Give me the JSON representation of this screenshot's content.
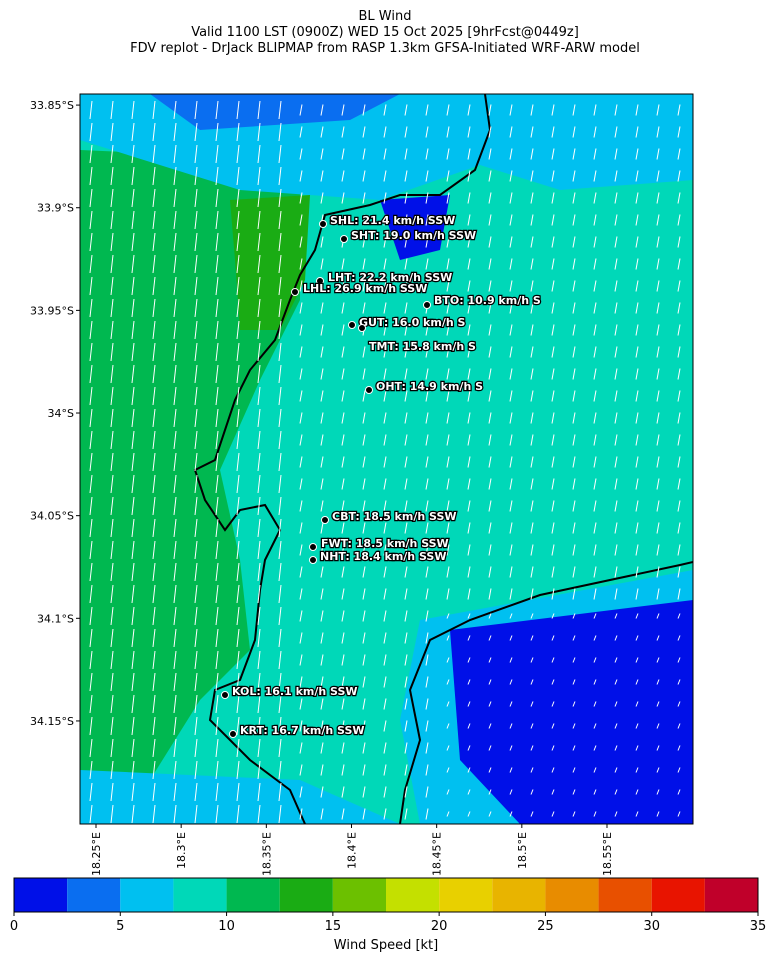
{
  "title": [
    "BL Wind",
    "Valid 1100 LST (0900Z) WED 15 Oct 2025 [9hrFcst@0449z]",
    "FDV replot - DrJack BLIPMAP from RASP 1.3km GFSA-Initiated WRF-ARW model"
  ],
  "map": {
    "latlim": [
      -33.8446,
      -34.2002
    ],
    "lonlim": [
      18.2406,
      18.6005
    ],
    "lat_ticks": [
      {
        "value": -33.85,
        "label": "33.85°S"
      },
      {
        "value": -33.9,
        "label": "33.9°S"
      },
      {
        "value": -33.95,
        "label": "33.95°S"
      },
      {
        "value": -34.0,
        "label": "34°S"
      },
      {
        "value": -34.05,
        "label": "34.05°S"
      },
      {
        "value": -34.1,
        "label": "34.1°S"
      },
      {
        "value": -34.15,
        "label": "34.15°S"
      }
    ],
    "lon_ticks": [
      {
        "value": 18.25,
        "label": "18.25°E"
      },
      {
        "value": 18.3,
        "label": "18.3°E"
      },
      {
        "value": 18.35,
        "label": "18.35°E"
      },
      {
        "value": 18.4,
        "label": "18.4°E"
      },
      {
        "value": 18.45,
        "label": "18.45°E"
      },
      {
        "value": 18.5,
        "label": "18.5°E"
      },
      {
        "value": 18.55,
        "label": "18.55°E"
      }
    ],
    "stations": [
      "SHL: 21.4 km/h SSW",
      "SHT: 19.0 km/h SSW",
      "LHT: 22.2 km/h SSW",
      "LHL: 26.9 km/h SSW",
      "BTO: 10.9 km/h S",
      "GUT: 16.0 km/h S",
      "TMT: 15.8 km/h S",
      "OHT: 14.9 km/h S",
      "CBT: 18.5 km/h SSW",
      "FWT: 18.5 km/h SSW",
      "NHT: 18.4 km/h SSW",
      "KOL: 16.1 km/h SSW",
      "KRT: 16.7 km/h SSW"
    ]
  },
  "colorbar": {
    "label": "Wind Speed [kt]",
    "lim": [
      0,
      35
    ],
    "ticks": [
      0,
      5,
      10,
      15,
      20,
      25,
      30,
      35
    ],
    "bounds": [
      0,
      2.5,
      5,
      7.5,
      10,
      12.5,
      15,
      17.5,
      20,
      22.5,
      25,
      27.5,
      30,
      32.5,
      35
    ],
    "colors": [
      "#0010e8",
      "#0a6ef0",
      "#00c0f0",
      "#00d8b8",
      "#00b850",
      "#1aac14",
      "#6cc000",
      "#c4e000",
      "#e8d000",
      "#e8b400",
      "#e88c00",
      "#e85000",
      "#e81400",
      "#c0002a"
    ]
  }
}
